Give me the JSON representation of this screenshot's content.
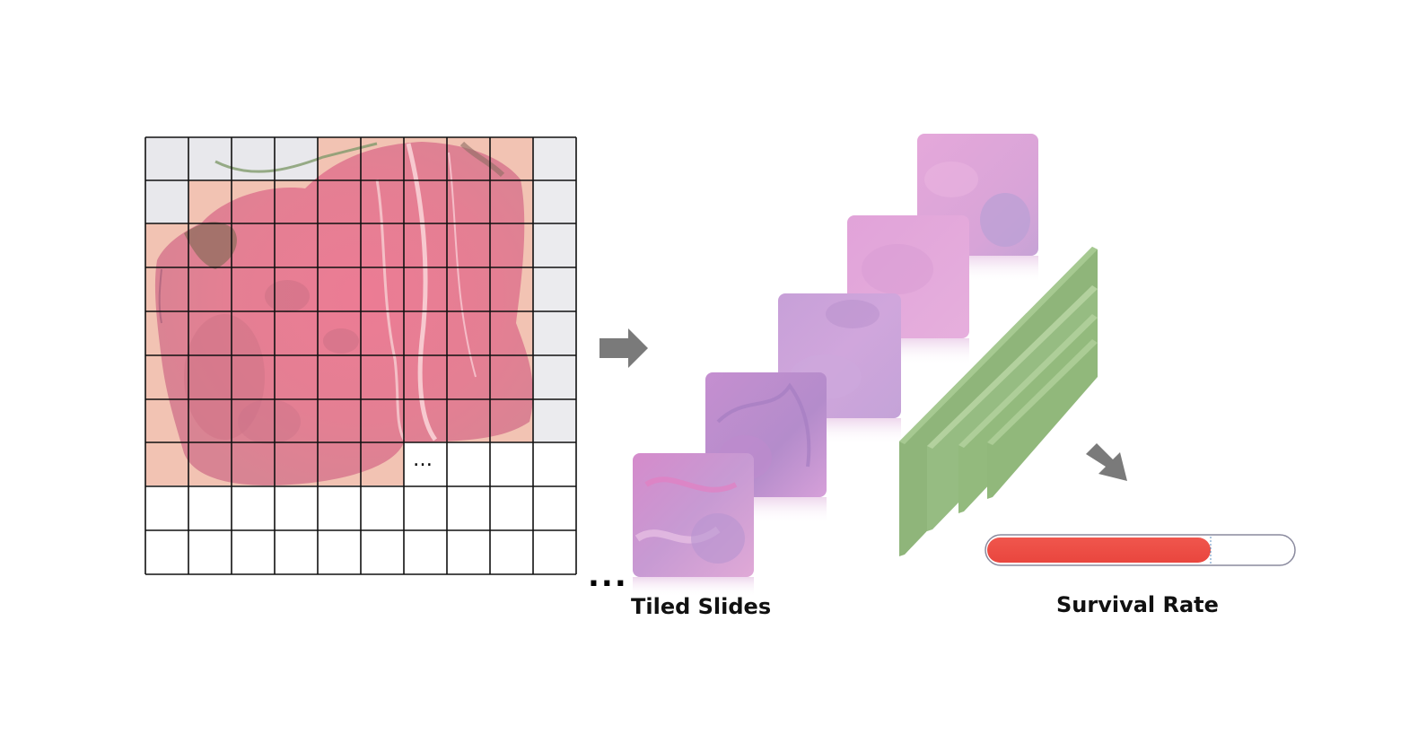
{
  "labels": {
    "tiled_slides": "Tiled Slides",
    "survival_rate": "Survival Rate",
    "grid_ellipsis": "…",
    "trailing_ellipsis": "..."
  },
  "survival_bar": {
    "fill_fraction": 0.73,
    "fill_color": "#EF5047",
    "track_border_color": "#8A8A9E"
  },
  "colors": {
    "tissue_pink": "#E8798E",
    "tissue_bg": "#F2C3B3",
    "empty_tile": "#E8E8EC",
    "layer_green": "#93BA7D",
    "arrow_gray": "#7A7A7A"
  },
  "icons": [
    "right-arrow-icon",
    "down-right-arrow-icon"
  ]
}
